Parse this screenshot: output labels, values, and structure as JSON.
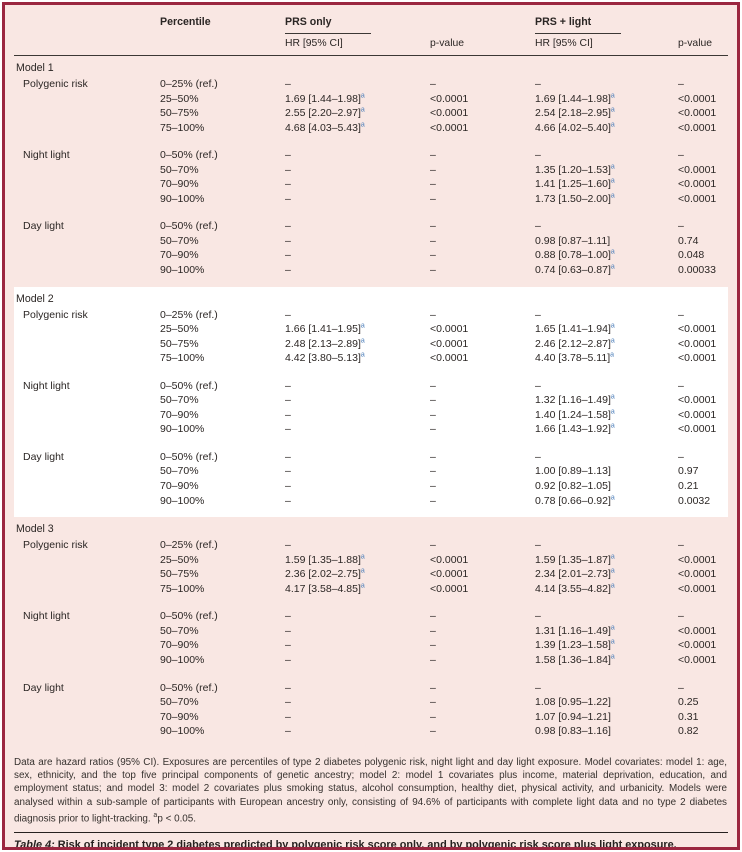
{
  "header": {
    "percentile": "Percentile",
    "group1": "PRS only",
    "group2": "PRS + light",
    "hr_label": "HR [95% CI]",
    "p_label": "p-value"
  },
  "sup_marker": "a",
  "accent_colors": {
    "frame_border": "#9b2740",
    "band_pink": "#f9e7e3",
    "band_white": "#ffffff",
    "footnote_marker_blue": "#4d7fba"
  },
  "models": [
    {
      "label": "Model 1",
      "groups": [
        {
          "label": "Polygenic risk",
          "rows": [
            {
              "pct": "0–25% (ref.)",
              "hr1": "–",
              "s1": false,
              "p1": "–",
              "hr2": "–",
              "s2": false,
              "p2": "–"
            },
            {
              "pct": "25–50%",
              "hr1": "1.69 [1.44–1.98]",
              "s1": true,
              "p1": "<0.0001",
              "hr2": "1.69 [1.44–1.98]",
              "s2": true,
              "p2": "<0.0001"
            },
            {
              "pct": "50–75%",
              "hr1": "2.55 [2.20–2.97]",
              "s1": true,
              "p1": "<0.0001",
              "hr2": "2.54 [2.18–2.95]",
              "s2": true,
              "p2": "<0.0001"
            },
            {
              "pct": "75–100%",
              "hr1": "4.68 [4.03–5.43]",
              "s1": true,
              "p1": "<0.0001",
              "hr2": "4.66 [4.02–5.40]",
              "s2": true,
              "p2": "<0.0001"
            }
          ]
        },
        {
          "label": "Night light",
          "rows": [
            {
              "pct": "0–50% (ref.)",
              "hr1": "–",
              "s1": false,
              "p1": "–",
              "hr2": "–",
              "s2": false,
              "p2": "–"
            },
            {
              "pct": "50–70%",
              "hr1": "–",
              "s1": false,
              "p1": "–",
              "hr2": "1.35 [1.20–1.53]",
              "s2": true,
              "p2": "<0.0001"
            },
            {
              "pct": "70–90%",
              "hr1": "–",
              "s1": false,
              "p1": "–",
              "hr2": "1.41 [1.25–1.60]",
              "s2": true,
              "p2": "<0.0001"
            },
            {
              "pct": "90–100%",
              "hr1": "–",
              "s1": false,
              "p1": "–",
              "hr2": "1.73 [1.50–2.00]",
              "s2": true,
              "p2": "<0.0001"
            }
          ]
        },
        {
          "label": "Day light",
          "rows": [
            {
              "pct": "0–50% (ref.)",
              "hr1": "–",
              "s1": false,
              "p1": "–",
              "hr2": "–",
              "s2": false,
              "p2": "–"
            },
            {
              "pct": "50–70%",
              "hr1": "–",
              "s1": false,
              "p1": "–",
              "hr2": "0.98 [0.87–1.11]",
              "s2": false,
              "p2": "0.74"
            },
            {
              "pct": "70–90%",
              "hr1": "–",
              "s1": false,
              "p1": "–",
              "hr2": "0.88 [0.78–1.00]",
              "s2": true,
              "p2": "0.048"
            },
            {
              "pct": "90–100%",
              "hr1": "–",
              "s1": false,
              "p1": "–",
              "hr2": "0.74 [0.63–0.87]",
              "s2": true,
              "p2": "0.00033"
            }
          ]
        }
      ]
    },
    {
      "label": "Model 2",
      "groups": [
        {
          "label": "Polygenic risk",
          "rows": [
            {
              "pct": "0–25% (ref.)",
              "hr1": "–",
              "s1": false,
              "p1": "–",
              "hr2": "–",
              "s2": false,
              "p2": "–"
            },
            {
              "pct": "25–50%",
              "hr1": "1.66 [1.41–1.95]",
              "s1": true,
              "p1": "<0.0001",
              "hr2": "1.65 [1.41–1.94]",
              "s2": true,
              "p2": "<0.0001"
            },
            {
              "pct": "50–75%",
              "hr1": "2.48 [2.13–2.89]",
              "s1": true,
              "p1": "<0.0001",
              "hr2": "2.46 [2.12–2.87]",
              "s2": true,
              "p2": "<0.0001"
            },
            {
              "pct": "75–100%",
              "hr1": "4.42 [3.80–5.13]",
              "s1": true,
              "p1": "<0.0001",
              "hr2": "4.40 [3.78–5.11]",
              "s2": true,
              "p2": "<0.0001"
            }
          ]
        },
        {
          "label": "Night light",
          "rows": [
            {
              "pct": "0–50% (ref.)",
              "hr1": "–",
              "s1": false,
              "p1": "–",
              "hr2": "–",
              "s2": false,
              "p2": "–"
            },
            {
              "pct": "50–70%",
              "hr1": "–",
              "s1": false,
              "p1": "–",
              "hr2": "1.32 [1.16–1.49]",
              "s2": true,
              "p2": "<0.0001"
            },
            {
              "pct": "70–90%",
              "hr1": "–",
              "s1": false,
              "p1": "–",
              "hr2": "1.40 [1.24–1.58]",
              "s2": true,
              "p2": "<0.0001"
            },
            {
              "pct": "90–100%",
              "hr1": "–",
              "s1": false,
              "p1": "–",
              "hr2": "1.66 [1.43–1.92]",
              "s2": true,
              "p2": "<0.0001"
            }
          ]
        },
        {
          "label": "Day light",
          "rows": [
            {
              "pct": "0–50% (ref.)",
              "hr1": "–",
              "s1": false,
              "p1": "–",
              "hr2": "–",
              "s2": false,
              "p2": "–"
            },
            {
              "pct": "50–70%",
              "hr1": "–",
              "s1": false,
              "p1": "–",
              "hr2": "1.00 [0.89–1.13]",
              "s2": false,
              "p2": "0.97"
            },
            {
              "pct": "70–90%",
              "hr1": "–",
              "s1": false,
              "p1": "–",
              "hr2": "0.92 [0.82–1.05]",
              "s2": false,
              "p2": "0.21"
            },
            {
              "pct": "90–100%",
              "hr1": "–",
              "s1": false,
              "p1": "–",
              "hr2": "0.78 [0.66–0.92]",
              "s2": true,
              "p2": "0.0032"
            }
          ]
        }
      ]
    },
    {
      "label": "Model 3",
      "groups": [
        {
          "label": "Polygenic risk",
          "rows": [
            {
              "pct": "0–25% (ref.)",
              "hr1": "–",
              "s1": false,
              "p1": "–",
              "hr2": "–",
              "s2": false,
              "p2": "–"
            },
            {
              "pct": "25–50%",
              "hr1": "1.59 [1.35–1.88]",
              "s1": true,
              "p1": "<0.0001",
              "hr2": "1.59 [1.35–1.87]",
              "s2": true,
              "p2": "<0.0001"
            },
            {
              "pct": "50–75%",
              "hr1": "2.36 [2.02–2.75]",
              "s1": true,
              "p1": "<0.0001",
              "hr2": "2.34 [2.01–2.73]",
              "s2": true,
              "p2": "<0.0001"
            },
            {
              "pct": "75–100%",
              "hr1": "4.17 [3.58–4.85]",
              "s1": true,
              "p1": "<0.0001",
              "hr2": "4.14 [3.55–4.82]",
              "s2": true,
              "p2": "<0.0001"
            }
          ]
        },
        {
          "label": "Night light",
          "rows": [
            {
              "pct": "0–50% (ref.)",
              "hr1": "–",
              "s1": false,
              "p1": "–",
              "hr2": "–",
              "s2": false,
              "p2": "–"
            },
            {
              "pct": "50–70%",
              "hr1": "–",
              "s1": false,
              "p1": "–",
              "hr2": "1.31 [1.16–1.49]",
              "s2": true,
              "p2": "<0.0001"
            },
            {
              "pct": "70–90%",
              "hr1": "–",
              "s1": false,
              "p1": "–",
              "hr2": "1.39 [1.23–1.58]",
              "s2": true,
              "p2": "<0.0001"
            },
            {
              "pct": "90–100%",
              "hr1": "–",
              "s1": false,
              "p1": "–",
              "hr2": "1.58 [1.36–1.84]",
              "s2": true,
              "p2": "<0.0001"
            }
          ]
        },
        {
          "label": "Day light",
          "rows": [
            {
              "pct": "0–50% (ref.)",
              "hr1": "–",
              "s1": false,
              "p1": "–",
              "hr2": "–",
              "s2": false,
              "p2": "–"
            },
            {
              "pct": "50–70%",
              "hr1": "–",
              "s1": false,
              "p1": "–",
              "hr2": "1.08 [0.95–1.22]",
              "s2": false,
              "p2": "0.25"
            },
            {
              "pct": "70–90%",
              "hr1": "–",
              "s1": false,
              "p1": "–",
              "hr2": "1.07 [0.94–1.21]",
              "s2": false,
              "p2": "0.31"
            },
            {
              "pct": "90–100%",
              "hr1": "–",
              "s1": false,
              "p1": "–",
              "hr2": "0.98 [0.83–1.16]",
              "s2": false,
              "p2": "0.82"
            }
          ]
        }
      ]
    }
  ],
  "footnote": {
    "text": "Data are hazard ratios (95% CI). Exposures are percentiles of type 2 diabetes polygenic risk, night light and day light exposure. Model covariates: model 1: age, sex, ethnicity, and the top five principal components of genetic ancestry; model 2: model 1 covariates plus income, material deprivation, education, and employment status; and model 3: model 2 covariates plus smoking status, alcohol consumption, healthy diet, physical activity, and urbanicity. Models were analysed within a sub-sample of participants with European ancestry only, consisting of 94.6% of participants with complete light data and no type 2 diabetes diagnosis prior to light-tracking. ",
    "sup": "a",
    "tail": "p < 0.05."
  },
  "caption": {
    "prefix": "Table 4:",
    "text": " Risk of incident type 2 diabetes predicted by polygenic risk score only, and by polygenic risk score plus light exposure."
  }
}
